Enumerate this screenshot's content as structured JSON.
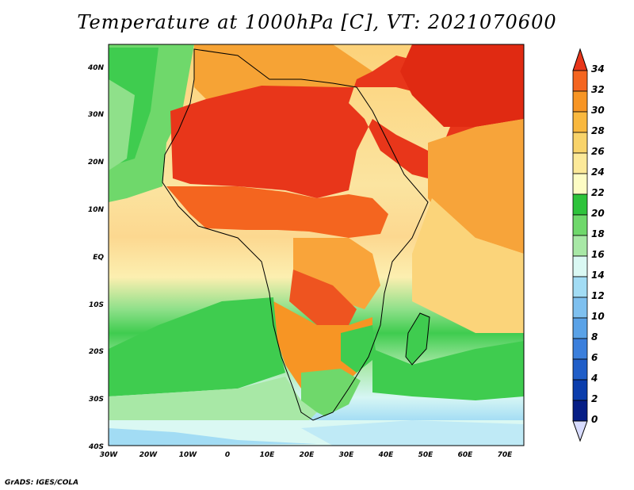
{
  "title": "Temperature at 1000hPa [C], VT: 2021070600",
  "footer": "GrADS: IGES/COLA",
  "map": {
    "lon_labels": [
      "30W",
      "20W",
      "10W",
      "0",
      "10E",
      "20E",
      "30E",
      "40E",
      "50E",
      "60E",
      "70E"
    ],
    "lat_labels": [
      "40N",
      "30N",
      "20N",
      "10N",
      "EQ",
      "10S",
      "20S",
      "30S",
      "40S"
    ],
    "lon_range": [
      -30,
      75
    ],
    "lat_range": [
      -40,
      45
    ]
  },
  "colorbar": {
    "labels": [
      "34",
      "32",
      "30",
      "28",
      "26",
      "24",
      "22",
      "20",
      "18",
      "16",
      "14",
      "12",
      "10",
      "8",
      "6",
      "4",
      "2",
      "0"
    ],
    "colors_top_to_bottom": [
      "#e8361a",
      "#f4651f",
      "#f79524",
      "#f9b83e",
      "#f8d36a",
      "#fce999",
      "#fdfcc4",
      "#2ec33b",
      "#6fd86b",
      "#a8e8a6",
      "#daf8f3",
      "#a2dcf4",
      "#7ec0ef",
      "#5aa2e7",
      "#3b7fdc",
      "#205ec8",
      "#0b3dac",
      "#061e86",
      "#d8dcff"
    ]
  }
}
